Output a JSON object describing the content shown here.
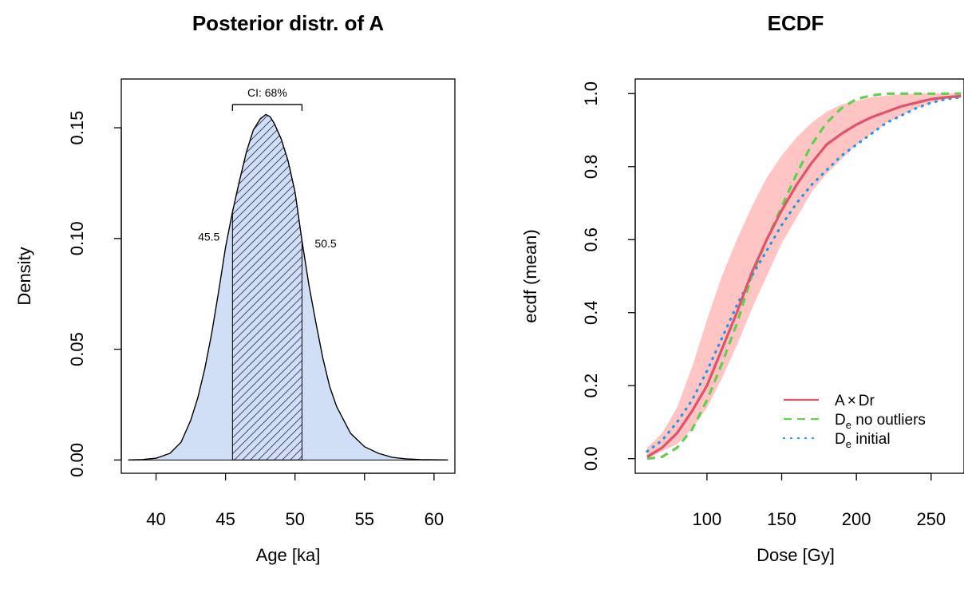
{
  "chart_data": [
    {
      "type": "area",
      "title": "Posterior distr. of A",
      "xlabel": "Age [ka]",
      "ylabel": "Density",
      "xlim": [
        37.5,
        61.5
      ],
      "ylim": [
        -0.006,
        0.172
      ],
      "x_ticks": [
        "40",
        "45",
        "50",
        "55",
        "60"
      ],
      "y_ticks": [
        "0.00",
        "0.05",
        "0.10",
        "0.15"
      ],
      "fill_color": "#d0dff6",
      "hatch_color": "#4a4a6a",
      "ci": {
        "label": "CI: 68%",
        "lower": 45.5,
        "upper": 50.5,
        "lower_label": "45.5",
        "upper_label": "50.5"
      },
      "series": [
        {
          "x": [
            38.0,
            39.0,
            40.0,
            41.0,
            41.8,
            42.5,
            43.0,
            43.5,
            44.0,
            44.5,
            45.0,
            45.5,
            46.0,
            46.5,
            47.0,
            47.5,
            47.9,
            48.2,
            48.5,
            49.0,
            49.5,
            50.0,
            50.5,
            51.0,
            51.5,
            52.0,
            52.5,
            53.0,
            54.0,
            55.0,
            56.0,
            57.0,
            58.0,
            59.0,
            60.0,
            61.0
          ],
          "y": [
            0.0,
            0.0002,
            0.0008,
            0.003,
            0.008,
            0.018,
            0.028,
            0.041,
            0.057,
            0.076,
            0.096,
            0.112,
            0.126,
            0.139,
            0.149,
            0.154,
            0.156,
            0.155,
            0.152,
            0.145,
            0.135,
            0.121,
            0.099,
            0.079,
            0.062,
            0.046,
            0.033,
            0.024,
            0.012,
            0.006,
            0.003,
            0.0012,
            0.0005,
            0.0002,
            0.0001,
            0.0
          ]
        }
      ]
    },
    {
      "type": "line",
      "title": "ECDF",
      "xlabel": "Dose [Gy]",
      "ylabel": "ecdf (mean)",
      "xlim": [
        52,
        272
      ],
      "ylim": [
        -0.04,
        1.04
      ],
      "x_ticks": [
        "100",
        "150",
        "200",
        "250"
      ],
      "y_ticks": [
        "0.0",
        "0.2",
        "0.4",
        "0.6",
        "0.8",
        "1.0"
      ],
      "band_color": "#ffc4c4",
      "band": {
        "x": [
          60,
          70,
          80,
          90,
          100,
          110,
          120,
          130,
          140,
          150,
          160,
          170,
          180,
          190,
          200,
          210,
          220,
          230,
          240,
          250,
          260,
          270
        ],
        "upper": [
          0.03,
          0.07,
          0.14,
          0.25,
          0.38,
          0.5,
          0.6,
          0.69,
          0.77,
          0.83,
          0.88,
          0.92,
          0.95,
          0.97,
          0.98,
          0.99,
          0.995,
          0.998,
          1.0,
          1.0,
          1.0,
          1.0
        ],
        "lower": [
          0.0,
          0.02,
          0.04,
          0.08,
          0.14,
          0.22,
          0.31,
          0.41,
          0.5,
          0.59,
          0.66,
          0.73,
          0.78,
          0.82,
          0.86,
          0.89,
          0.92,
          0.94,
          0.96,
          0.975,
          0.985,
          0.99
        ]
      },
      "legend": {
        "position": "bottom-right"
      },
      "series": [
        {
          "name": "A × Dr",
          "legend_main": "A",
          "legend_op": "×",
          "legend_rest": "Dr",
          "color": "#df536b",
          "style": "solid",
          "x": [
            60,
            70,
            80,
            90,
            100,
            110,
            120,
            130,
            140,
            150,
            160,
            170,
            180,
            190,
            200,
            210,
            220,
            230,
            240,
            250,
            260,
            270
          ],
          "y": [
            0.005,
            0.03,
            0.07,
            0.13,
            0.2,
            0.3,
            0.4,
            0.51,
            0.6,
            0.68,
            0.75,
            0.81,
            0.86,
            0.89,
            0.915,
            0.935,
            0.95,
            0.965,
            0.975,
            0.985,
            0.99,
            0.993
          ]
        },
        {
          "name": "De no outliers",
          "legend_main": "D",
          "legend_sub": "e",
          "legend_rest": " no outliers",
          "color": "#61d04f",
          "style": "dashed",
          "x": [
            60,
            70,
            80,
            90,
            100,
            110,
            120,
            130,
            140,
            150,
            160,
            170,
            180,
            190,
            200,
            210,
            220,
            230,
            240,
            250,
            260,
            270
          ],
          "y": [
            0.0,
            0.005,
            0.03,
            0.08,
            0.16,
            0.26,
            0.37,
            0.5,
            0.6,
            0.69,
            0.78,
            0.86,
            0.92,
            0.96,
            0.985,
            0.995,
            1.0,
            1.0,
            1.0,
            1.0,
            1.0,
            1.0
          ]
        },
        {
          "name": "De initial",
          "legend_main": "D",
          "legend_sub": "e",
          "legend_rest": " initial",
          "color": "#2297e6",
          "style": "dotted",
          "x": [
            60,
            70,
            80,
            90,
            100,
            110,
            120,
            130,
            140,
            150,
            160,
            170,
            180,
            190,
            200,
            210,
            220,
            230,
            240,
            250,
            260,
            270
          ],
          "y": [
            0.02,
            0.05,
            0.1,
            0.16,
            0.24,
            0.33,
            0.42,
            0.5,
            0.57,
            0.64,
            0.7,
            0.75,
            0.79,
            0.83,
            0.86,
            0.89,
            0.92,
            0.94,
            0.96,
            0.975,
            0.985,
            0.99
          ]
        }
      ]
    }
  ]
}
